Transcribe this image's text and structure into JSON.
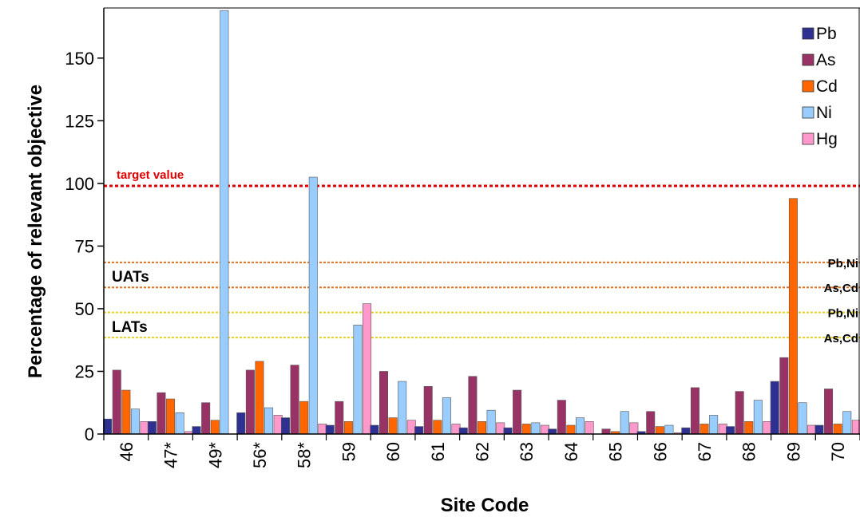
{
  "chart_data": {
    "type": "bar",
    "xlabel": "Site Code",
    "ylabel": "Percentage of relevant objective",
    "ylim": [
      0,
      170
    ],
    "yticks": [
      0,
      25,
      50,
      75,
      100,
      125,
      150
    ],
    "grid": false,
    "legend_position": "top-right",
    "categories": [
      "46",
      "47*",
      "49*",
      "56*",
      "58*",
      "59",
      "60",
      "61",
      "62",
      "63",
      "64",
      "65",
      "66",
      "67",
      "68",
      "69",
      "70"
    ],
    "series": [
      {
        "name": "Pb",
        "color": "#2e3192",
        "values": [
          6,
          5,
          3,
          8.5,
          6.5,
          3.5,
          3.5,
          3,
          2.5,
          2.5,
          2,
          0,
          1,
          2.5,
          3,
          21,
          3.5
        ]
      },
      {
        "name": "As",
        "color": "#993366",
        "values": [
          25.5,
          16.5,
          12.5,
          25.5,
          27.5,
          13,
          25,
          19,
          23,
          17.5,
          13.5,
          2,
          9,
          18.5,
          17,
          30.5,
          18
        ]
      },
      {
        "name": "Cd",
        "color": "#ff6600",
        "values": [
          17.5,
          14,
          5.5,
          29,
          13,
          5,
          6.5,
          5.5,
          5,
          4,
          3.5,
          1,
          3,
          4,
          5,
          94,
          4
        ]
      },
      {
        "name": "Ni",
        "color": "#99ccff",
        "values": [
          10,
          8.5,
          169,
          10.5,
          102.5,
          43.5,
          21,
          14.5,
          9.5,
          4.5,
          6.5,
          9,
          3.5,
          7.5,
          13.5,
          12.5,
          9
        ]
      },
      {
        "name": "Hg",
        "color": "#ff99cc",
        "values": [
          5,
          1,
          0,
          7.5,
          4,
          52,
          5.5,
          4,
          4.5,
          3.5,
          5,
          4.5,
          0.5,
          4,
          5,
          3.5,
          5.5
        ]
      }
    ],
    "reference_lines": [
      {
        "value": 99,
        "color": "#e00000",
        "label": "target value",
        "label_side": "left"
      },
      {
        "value": 68.5,
        "color": "#e07020",
        "label": "Pb,Ni",
        "label_side": "right"
      },
      {
        "value": 58.5,
        "color": "#e07020",
        "label": "As,Cd",
        "label_side": "right"
      },
      {
        "value": 48.5,
        "color": "#e8d020",
        "label": "Pb,Ni",
        "label_side": "right"
      },
      {
        "value": 38.5,
        "color": "#e8d020",
        "label": "As,Cd",
        "label_side": "right"
      }
    ],
    "group_labels": [
      {
        "text": "UATs",
        "value": 63
      },
      {
        "text": "LATs",
        "value": 43
      }
    ]
  }
}
